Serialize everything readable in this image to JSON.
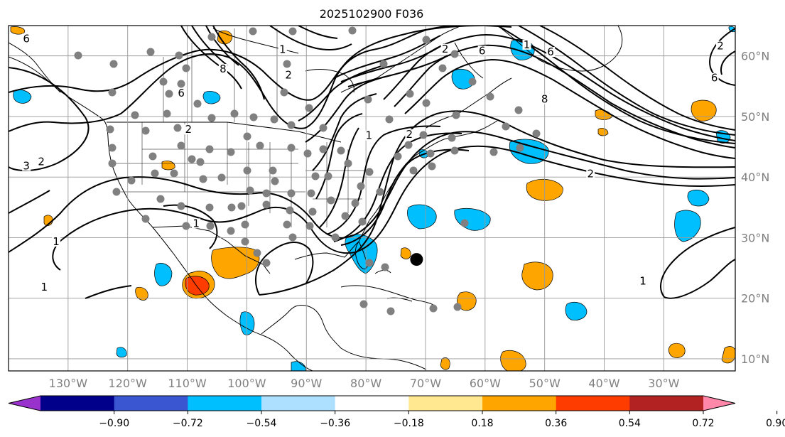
{
  "title": "2025102900 F036",
  "map": {
    "lon_range": [
      -140,
      -18
    ],
    "lat_range": [
      8,
      65
    ],
    "lon_ticks": [
      "130°W",
      "120°W",
      "110°W",
      "100°W",
      "90°W",
      "80°W",
      "70°W",
      "60°W",
      "50°W",
      "40°W",
      "30°W"
    ],
    "lat_ticks": [
      "60°N",
      "50°N",
      "40°N",
      "30°N",
      "20°N",
      "10°N"
    ],
    "grid": true,
    "marker": {
      "label": "center point",
      "lon": -71.5,
      "lat": 26.4
    },
    "contour_labels": [
      {
        "text": "6",
        "lon": -137,
        "lat": 62.5
      },
      {
        "text": "3",
        "lon": -137,
        "lat": 41.5
      },
      {
        "text": "2",
        "lon": -134.5,
        "lat": 42.2
      },
      {
        "text": "1",
        "lon": -132,
        "lat": 29
      },
      {
        "text": "1",
        "lon": -134,
        "lat": 21.5
      },
      {
        "text": "6",
        "lon": -111,
        "lat": 53.5
      },
      {
        "text": "2",
        "lon": -109.8,
        "lat": 47.5
      },
      {
        "text": "8",
        "lon": -104,
        "lat": 57.5
      },
      {
        "text": "1",
        "lon": -108.5,
        "lat": 32
      },
      {
        "text": "1",
        "lon": -94,
        "lat": 60.7
      },
      {
        "text": "2",
        "lon": -93,
        "lat": 56.5
      },
      {
        "text": "1",
        "lon": -79.5,
        "lat": 46.5
      },
      {
        "text": "2",
        "lon": -72.7,
        "lat": 46.7
      },
      {
        "text": "2",
        "lon": -66.7,
        "lat": 60.8
      },
      {
        "text": "6",
        "lon": -60.5,
        "lat": 60.5
      },
      {
        "text": "1",
        "lon": -53,
        "lat": 61.5
      },
      {
        "text": "6",
        "lon": -49,
        "lat": 60.3
      },
      {
        "text": "8",
        "lon": -50,
        "lat": 52.5
      },
      {
        "text": "2",
        "lon": -42.3,
        "lat": 40.2
      },
      {
        "text": "1",
        "lon": -33.5,
        "lat": 22.5
      },
      {
        "text": "2",
        "lon": -20.5,
        "lat": 61.3
      },
      {
        "text": "6",
        "lon": -21.5,
        "lat": 56
      }
    ]
  },
  "colorbar": {
    "ticks": [
      "−0.90",
      "−0.72",
      "−0.54",
      "−0.36",
      "−0.18",
      "0.18",
      "0.36",
      "0.54",
      "0.72",
      "0.90"
    ],
    "colors": [
      "#9932CC",
      "#00008B",
      "#3A57D1",
      "#00BFFF",
      "#ADDFFF",
      "#FFFFFF",
      "#FFE88F",
      "#FFA500",
      "#FF3C00",
      "#B22222",
      "#FF88AA"
    ]
  }
}
